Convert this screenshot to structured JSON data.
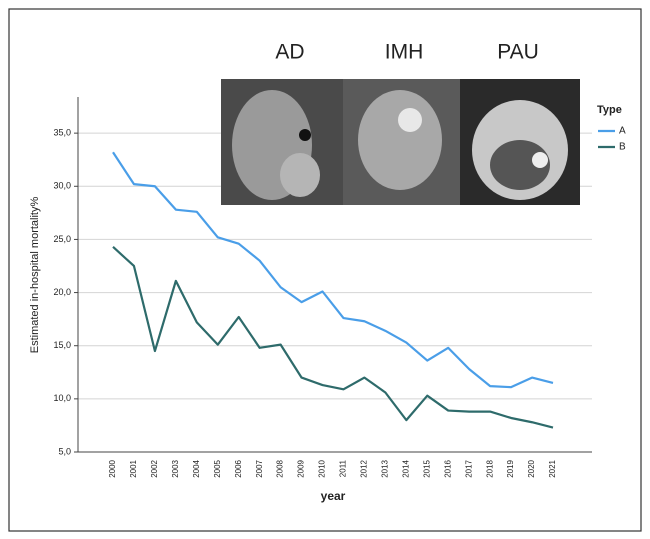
{
  "chart_data": {
    "type": "line",
    "annotations": [
      "AD",
      "IMH",
      "PAU"
    ],
    "xlabel": "year",
    "ylabel": "Estimated in-hospital mortality%",
    "legend_title": "Type",
    "legend": "right",
    "grid": true,
    "categories": [
      "2000",
      "2001",
      "2002",
      "2003",
      "2004",
      "2005",
      "2006",
      "2007",
      "2008",
      "2009",
      "2010",
      "2011",
      "2012",
      "2013",
      "2014",
      "2015",
      "2016",
      "2017",
      "2018",
      "2019",
      "2020",
      "2021"
    ],
    "series": [
      {
        "name": "A",
        "color": "#4a9ee8",
        "values": [
          33.2,
          30.2,
          30.0,
          27.8,
          27.6,
          25.2,
          24.6,
          23.0,
          20.5,
          19.1,
          20.1,
          17.6,
          17.3,
          16.4,
          15.3,
          13.6,
          14.8,
          12.8,
          11.2,
          11.1,
          12.0,
          11.5
        ]
      },
      {
        "name": "B",
        "color": "#2e6b6b",
        "values": [
          24.3,
          22.5,
          14.5,
          21.1,
          17.2,
          15.1,
          17.7,
          14.8,
          15.1,
          12.0,
          11.3,
          10.9,
          12.0,
          10.6,
          8.0,
          10.3,
          8.9,
          8.8,
          8.8,
          8.2,
          7.8,
          7.3
        ]
      }
    ],
    "ylim": [
      5,
      38.4
    ],
    "yticks": [
      {
        "value": 5,
        "label": "5,0"
      },
      {
        "value": 10,
        "label": "10,0"
      },
      {
        "value": 15,
        "label": "15,0"
      },
      {
        "value": 20,
        "label": "20,0"
      },
      {
        "value": 25,
        "label": "25,0"
      },
      {
        "value": 30,
        "label": "30,0"
      },
      {
        "value": 35,
        "label": "35,0"
      }
    ]
  }
}
